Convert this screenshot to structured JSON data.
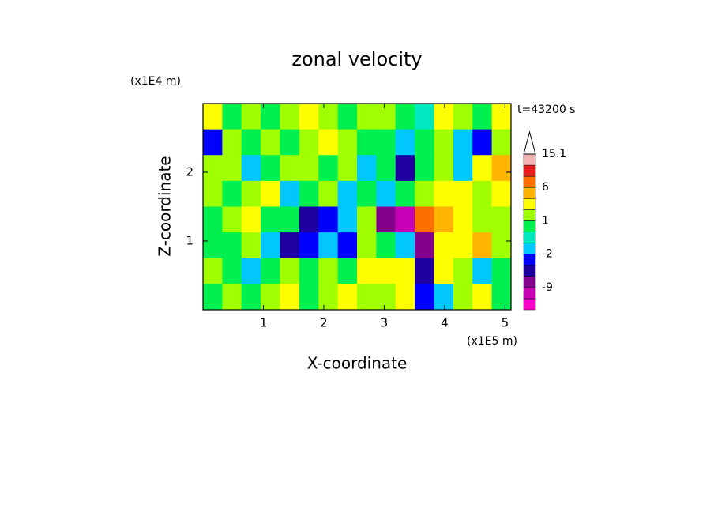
{
  "chart_data": {
    "type": "contour",
    "title": "zonal velocity",
    "xlabel": "X-coordinate",
    "ylabel": "Z-coordinate",
    "xunit": "(x1E5 m)",
    "yunit": "(x1E4 m)",
    "time_label": "t=43200 s",
    "xlim": [
      0,
      5.1
    ],
    "ylim": [
      0,
      3
    ],
    "xticks": [
      1,
      2,
      3,
      4,
      5
    ],
    "yticks": [
      1,
      2
    ],
    "levels": [
      -15,
      -12,
      -9,
      -6,
      -4,
      -2,
      -1,
      0,
      1,
      2,
      4,
      6,
      9,
      12,
      15.1
    ],
    "colors": [
      "#ff00c8",
      "#c800b4",
      "#82008c",
      "#1e00a0",
      "#0000ff",
      "#00c8ff",
      "#00e8c0",
      "#00f050",
      "#a0ff00",
      "#ffff00",
      "#ffb400",
      "#ff6e00",
      "#e81e1e",
      "#f4b4b4"
    ],
    "colorbar_ticks": [
      15.1,
      6,
      1,
      -2,
      -9
    ],
    "z": [
      [
        2,
        0.5,
        1,
        0.5,
        1.5,
        2,
        1,
        0.5,
        1,
        1.5,
        0.5,
        -1,
        2,
        1,
        0.5,
        2
      ],
      [
        -3,
        1,
        0.5,
        1.5,
        0.5,
        1,
        2,
        1,
        0.5,
        0.5,
        -1.5,
        0.5,
        1.5,
        -1.5,
        -3,
        1
      ],
      [
        1,
        1.5,
        -1.5,
        0.5,
        1,
        1.5,
        0.5,
        1,
        -1.5,
        0.5,
        -5,
        0.5,
        1,
        -1.5,
        3,
        5
      ],
      [
        1.5,
        0.5,
        1,
        2.5,
        -1.5,
        0.5,
        1,
        -1.5,
        0.5,
        -1.5,
        0.5,
        1.5,
        3,
        2.5,
        1,
        3
      ],
      [
        0.5,
        1.5,
        3,
        0.5,
        0.5,
        -5,
        -3,
        -1.5,
        1.5,
        -7,
        -10,
        8,
        5,
        3,
        1.5,
        1
      ],
      [
        0.5,
        0.5,
        1,
        -1.5,
        -5,
        -3,
        -1.5,
        -3,
        1,
        0.5,
        -1.5,
        -7,
        3,
        2.5,
        5,
        1.5
      ],
      [
        1,
        0.5,
        -1.5,
        0.5,
        1,
        0.5,
        1.5,
        0.5,
        2.5,
        3,
        2.5,
        -5,
        2.5,
        1,
        -1.5,
        0.5
      ],
      [
        0.5,
        1.5,
        0.5,
        1,
        2.5,
        0.5,
        1,
        3,
        1.5,
        1,
        2.5,
        -3,
        -1.5,
        1,
        3,
        0.5
      ]
    ]
  }
}
